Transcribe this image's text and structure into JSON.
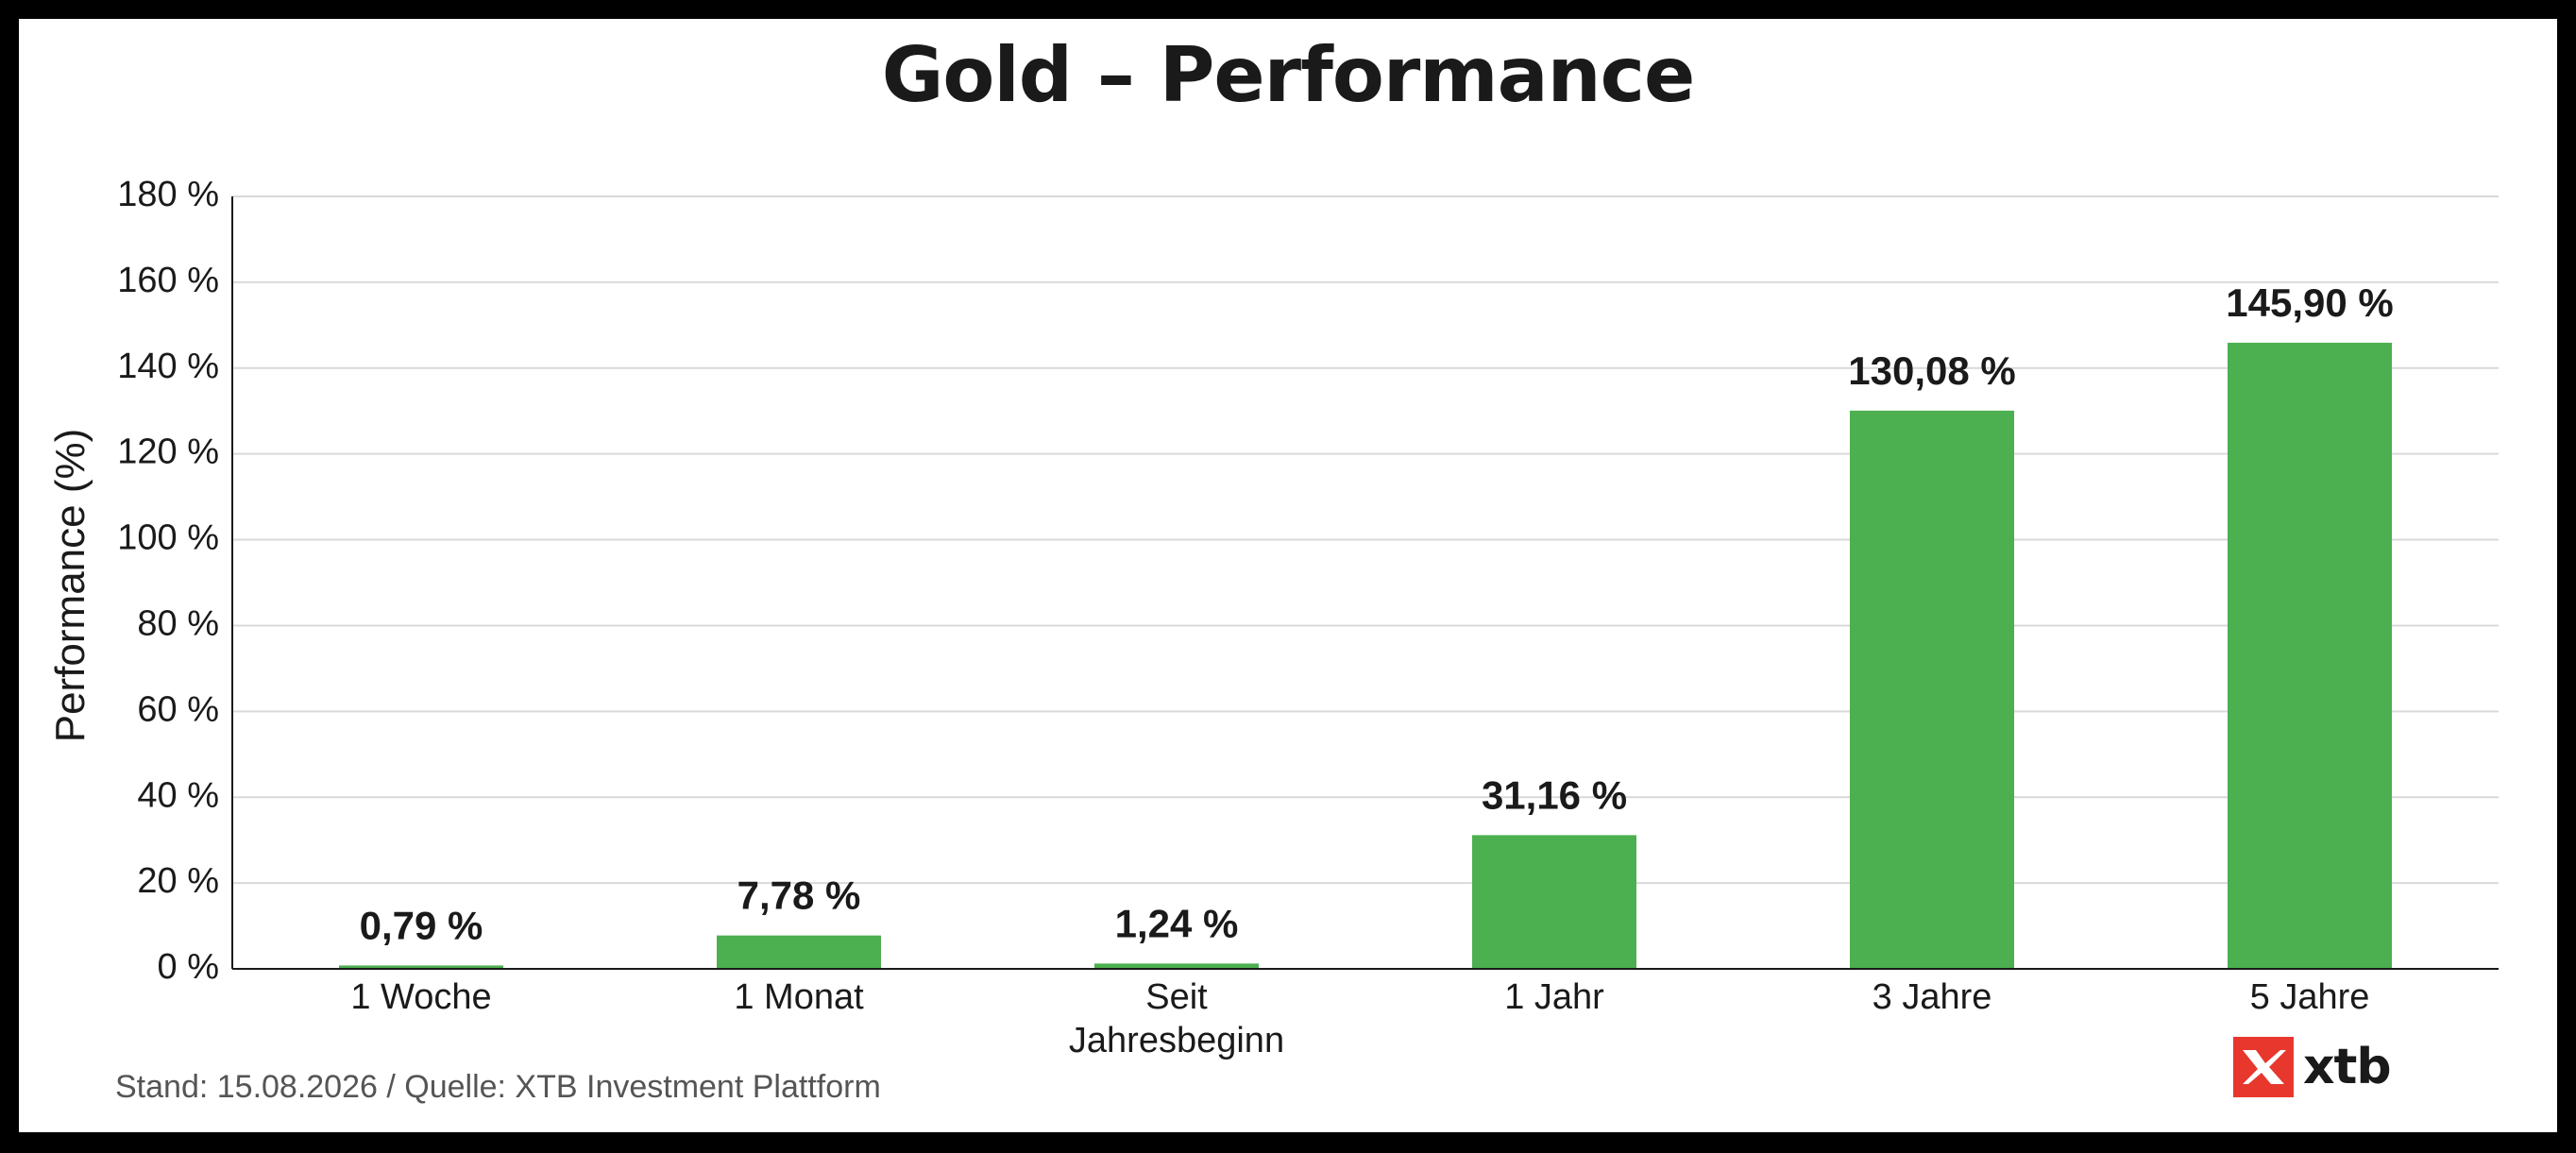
{
  "chart_data": {
    "type": "bar",
    "title": "Gold – Performance",
    "xlabel": "",
    "ylabel": "Performance (%)",
    "categories": [
      "1 Woche",
      "1 Monat",
      "Seit Jahresbeginn",
      "1 Jahr",
      "3 Jahre",
      "5 Jahre"
    ],
    "category_lines": [
      [
        "1 Woche"
      ],
      [
        "1 Monat"
      ],
      [
        "Seit",
        "Jahresbeginn"
      ],
      [
        "1 Jahr"
      ],
      [
        "3 Jahre"
      ],
      [
        "5 Jahre"
      ]
    ],
    "values": [
      0.79,
      7.78,
      1.24,
      31.16,
      130.08,
      145.9
    ],
    "value_labels": [
      "0,79 %",
      "7,78 %",
      "1,24 %",
      "31,16 %",
      "130,08 %",
      "145,90 %"
    ],
    "ylim": [
      0,
      180
    ],
    "yticks": [
      0,
      20,
      40,
      60,
      80,
      100,
      120,
      140,
      160,
      180
    ],
    "ytick_labels": [
      "0 %",
      "20 %",
      "40 %",
      "60 %",
      "80 %",
      "100 %",
      "120 %",
      "140 %",
      "160 %",
      "180 %"
    ],
    "grid": true,
    "legend": "none",
    "bar_color": "#4caf50"
  },
  "footer": {
    "source": "Stand: 15.08.2026 / Quelle: XTB Investment Plattform"
  },
  "logo": {
    "text": "xtb",
    "icon": "xtb-logo-icon",
    "color": "#e8372c"
  }
}
